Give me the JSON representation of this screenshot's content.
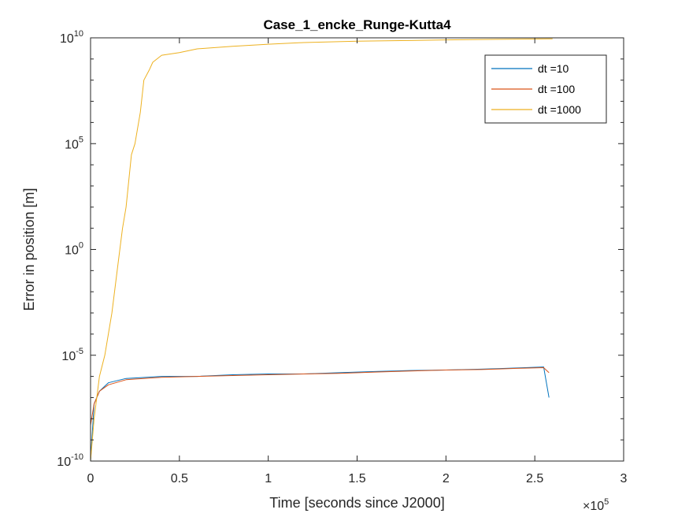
{
  "chart_data": {
    "type": "line",
    "title": "Case_1_encke_Runge-Kutta4",
    "xlabel": "Time [seconds since J2000]",
    "ylabel": "Error in position [m]",
    "x_multiplier": "×10",
    "x_multiplier_exp": "5",
    "xlim": [
      0,
      300000
    ],
    "ylim": [
      1e-10,
      10000000000.0
    ],
    "yscale": "log",
    "x_ticks": [
      {
        "value": 0,
        "label": "0"
      },
      {
        "value": 50000,
        "label": "0.5"
      },
      {
        "value": 100000,
        "label": "1"
      },
      {
        "value": 150000,
        "label": "1.5"
      },
      {
        "value": 200000,
        "label": "2"
      },
      {
        "value": 250000,
        "label": "2.5"
      },
      {
        "value": 300000,
        "label": "3"
      }
    ],
    "y_ticks": [
      {
        "value": 1e-10,
        "base": "10",
        "exp": "-10"
      },
      {
        "value": 1e-05,
        "base": "10",
        "exp": "-5"
      },
      {
        "value": 1,
        "base": "10",
        "exp": "0"
      },
      {
        "value": 100000.0,
        "base": "10",
        "exp": "5"
      },
      {
        "value": 10000000000.0,
        "base": "10",
        "exp": "10"
      }
    ],
    "legend_position": "top-right",
    "grid": false,
    "series": [
      {
        "name": "dt =10",
        "color": "#0072BD",
        "x": [
          0,
          2000,
          5000,
          10000,
          20000,
          40000,
          60000,
          80000,
          100000,
          120000,
          140000,
          160000,
          180000,
          200000,
          220000,
          240000,
          255000,
          258000
        ],
        "y": [
          1e-10,
          5e-08,
          2e-07,
          5e-07,
          8e-07,
          1e-06,
          1e-06,
          1.2e-06,
          1.3e-06,
          1.3e-06,
          1.5e-06,
          1.7e-06,
          1.9e-06,
          2e-06,
          2.2e-06,
          2.5e-06,
          2.8e-06,
          1e-07
        ]
      },
      {
        "name": "dt =100",
        "color": "#D95319",
        "x": [
          0,
          2000,
          5000,
          10000,
          20000,
          40000,
          60000,
          80000,
          100000,
          120000,
          140000,
          160000,
          180000,
          200000,
          220000,
          240000,
          255000,
          258000
        ],
        "y": [
          5e-09,
          5e-08,
          2e-07,
          4e-07,
          7e-07,
          9e-07,
          1e-06,
          1.1e-06,
          1.2e-06,
          1.3e-06,
          1.4e-06,
          1.6e-06,
          1.8e-06,
          2e-06,
          2.1e-06,
          2.4e-06,
          2.6e-06,
          1.5e-06
        ]
      },
      {
        "name": "dt =1000",
        "color": "#EDB120",
        "x": [
          0,
          2000,
          5000,
          8000,
          10000,
          12000,
          15000,
          18000,
          20000,
          23000,
          25000,
          28000,
          30000,
          33000,
          35000,
          40000,
          50000,
          60000,
          80000,
          100000,
          120000,
          150000,
          180000,
          200000,
          230000,
          260000
        ],
        "y": [
          1e-10,
          1e-08,
          1e-06,
          1e-05,
          0.0001,
          0.001,
          0.1,
          10,
          100,
          30000,
          100000,
          3000000,
          100000000,
          300000000,
          700000000,
          1500000000,
          2000000000,
          3000000000,
          4000000000,
          5000000000,
          6000000000,
          7000000000,
          7500000000,
          8000000000,
          8500000000,
          9000000000
        ]
      }
    ]
  }
}
